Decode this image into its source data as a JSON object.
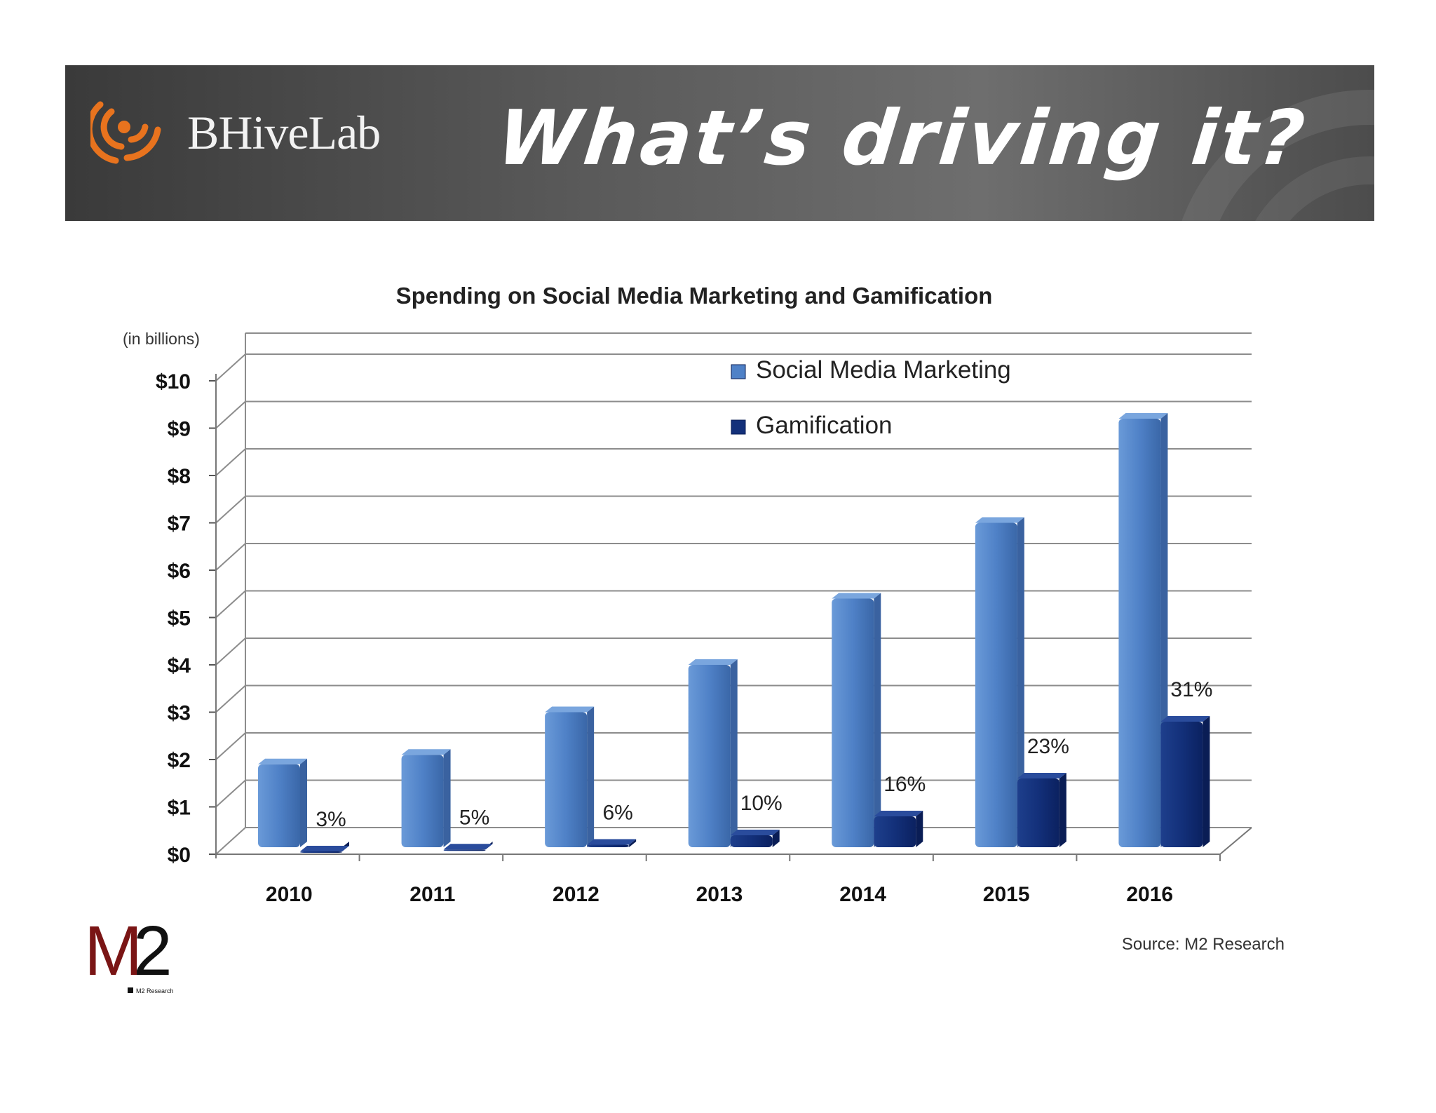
{
  "header": {
    "brand": "BHiveLab",
    "slide_title": "What’s driving it?",
    "colors": {
      "banner": "#555555",
      "brand_accent": "#e8731e"
    }
  },
  "chart_data": {
    "type": "bar",
    "title": "Spending on Social Media Marketing and Gamification",
    "ylabel": "(in billions)",
    "xlabel": "",
    "ylim": [
      0,
      10
    ],
    "yticks": [
      "$0",
      "$1",
      "$2",
      "$3",
      "$4",
      "$5",
      "$6",
      "$7",
      "$8",
      "$9",
      "$10"
    ],
    "categories": [
      "2010",
      "2011",
      "2012",
      "2013",
      "2014",
      "2015",
      "2016"
    ],
    "series": [
      {
        "name": "Social Media Marketing",
        "color": "#4f81c7",
        "values": [
          1.9,
          2.1,
          3.0,
          4.0,
          5.4,
          7.0,
          9.2
        ]
      },
      {
        "name": "Gamification",
        "color": "#13307a",
        "values": [
          0.06,
          0.1,
          0.2,
          0.4,
          0.8,
          1.6,
          2.8
        ]
      }
    ],
    "annotations": [
      "3%",
      "5%",
      "6%",
      "10%",
      "16%",
      "23%",
      "31%"
    ],
    "legend": "top-center",
    "grid": true,
    "source": "Source: M2 Research"
  },
  "footer": {
    "m2_logo": "M2",
    "m2_caption": "M2 Research"
  }
}
